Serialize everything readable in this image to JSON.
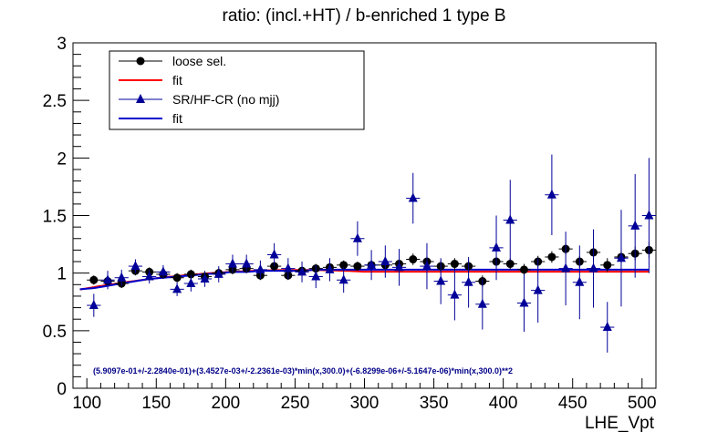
{
  "chart_data": {
    "type": "scatter",
    "title": "ratio: (incl.+HT) / b-enriched 1 type B",
    "xlabel": "LHE_Vpt",
    "ylabel": "",
    "xlim": [
      90,
      510
    ],
    "ylim": [
      0,
      3
    ],
    "x_ticks": [
      "100",
      "150",
      "200",
      "250",
      "300",
      "350",
      "400",
      "450",
      "500"
    ],
    "y_ticks": [
      "0",
      "0.5",
      "1",
      "1.5",
      "2",
      "2.5",
      "3"
    ],
    "legend_position": "top-left",
    "formula": "(5.9097e-01+/-2.2840e-01)+(3.4527e-03+/-2.2361e-03)*min(x,300.0)+(-6.8299e-06+/-5.1647e-06)*min(x,300.0)**2",
    "x": [
      105,
      115,
      125,
      135,
      145,
      155,
      165,
      175,
      185,
      195,
      205,
      215,
      225,
      235,
      245,
      255,
      265,
      275,
      285,
      295,
      305,
      315,
      325,
      335,
      345,
      355,
      365,
      375,
      385,
      395,
      405,
      415,
      425,
      435,
      445,
      455,
      465,
      475,
      485,
      495,
      505
    ],
    "series": [
      {
        "name": "loose sel.",
        "color": "#000000",
        "marker": "circle",
        "values": [
          0.94,
          0.93,
          0.91,
          1.02,
          1.01,
          0.99,
          0.96,
          0.99,
          0.97,
          1.0,
          1.03,
          1.04,
          0.98,
          1.06,
          0.98,
          1.02,
          1.04,
          1.05,
          1.07,
          1.06,
          1.07,
          1.07,
          1.08,
          1.12,
          1.1,
          1.06,
          1.08,
          1.06,
          0.93,
          1.1,
          1.08,
          1.03,
          1.1,
          1.14,
          1.21,
          1.1,
          1.18,
          1.07,
          1.14,
          1.17,
          1.2
        ],
        "errors": [
          0.04,
          0.04,
          0.04,
          0.04,
          0.04,
          0.04,
          0.04,
          0.04,
          0.04,
          0.04,
          0.04,
          0.04,
          0.04,
          0.04,
          0.04,
          0.04,
          0.04,
          0.04,
          0.04,
          0.04,
          0.04,
          0.04,
          0.04,
          0.05,
          0.05,
          0.05,
          0.05,
          0.05,
          0.05,
          0.05,
          0.05,
          0.05,
          0.05,
          0.05,
          0.05,
          0.05,
          0.06,
          0.06,
          0.06,
          0.06,
          0.07
        ]
      },
      {
        "name": "SR/HF-CR (no mjj)",
        "color": "#000099",
        "marker": "triangle",
        "values": [
          0.72,
          0.94,
          0.96,
          1.06,
          0.97,
          1.01,
          0.86,
          0.91,
          0.95,
          0.99,
          1.08,
          1.08,
          1.03,
          1.16,
          1.04,
          1.01,
          0.97,
          1.03,
          0.94,
          1.3,
          1.07,
          1.1,
          1.05,
          1.65,
          1.06,
          0.93,
          0.81,
          0.92,
          0.73,
          1.22,
          1.46,
          0.74,
          0.85,
          1.68,
          1.04,
          0.92,
          1.04,
          0.53,
          1.13,
          1.41,
          1.5
        ],
        "errors": [
          0.1,
          0.08,
          0.07,
          0.06,
          0.06,
          0.06,
          0.06,
          0.07,
          0.07,
          0.07,
          0.08,
          0.08,
          0.08,
          0.1,
          0.09,
          0.09,
          0.1,
          0.1,
          0.11,
          0.15,
          0.13,
          0.14,
          0.16,
          0.22,
          0.2,
          0.2,
          0.22,
          0.22,
          0.22,
          0.28,
          0.35,
          0.25,
          0.28,
          0.35,
          0.32,
          0.32,
          0.34,
          0.22,
          0.42,
          0.45,
          0.5
        ]
      }
    ],
    "fits": [
      {
        "name": "fit",
        "color": "#ff0000",
        "params": [
          0.59097,
          0.0034527,
          -6.8299e-06
        ],
        "xcap": 300
      },
      {
        "name": "fit",
        "color": "#0000cc",
        "x": [
          95,
          105,
          115,
          125,
          135,
          145,
          155,
          165,
          175,
          185,
          195,
          205,
          215,
          225,
          235,
          245,
          255,
          265,
          275,
          285,
          295,
          305,
          505
        ],
        "values": [
          0.86,
          0.87,
          0.89,
          0.91,
          0.93,
          0.95,
          0.96,
          0.97,
          0.98,
          0.99,
          1.0,
          1.01,
          1.01,
          1.02,
          1.02,
          1.02,
          1.02,
          1.03,
          1.03,
          1.03,
          1.03,
          1.03,
          1.03
        ]
      }
    ],
    "legend": [
      {
        "label": "loose sel.",
        "kind": "marker-circle",
        "color": "#000000"
      },
      {
        "label": "fit",
        "kind": "line",
        "color": "#ff0000"
      },
      {
        "label": "SR/HF-CR (no mjj)",
        "kind": "marker-triangle",
        "color": "#000099"
      },
      {
        "label": "fit",
        "kind": "line",
        "color": "#0000cc"
      }
    ]
  }
}
